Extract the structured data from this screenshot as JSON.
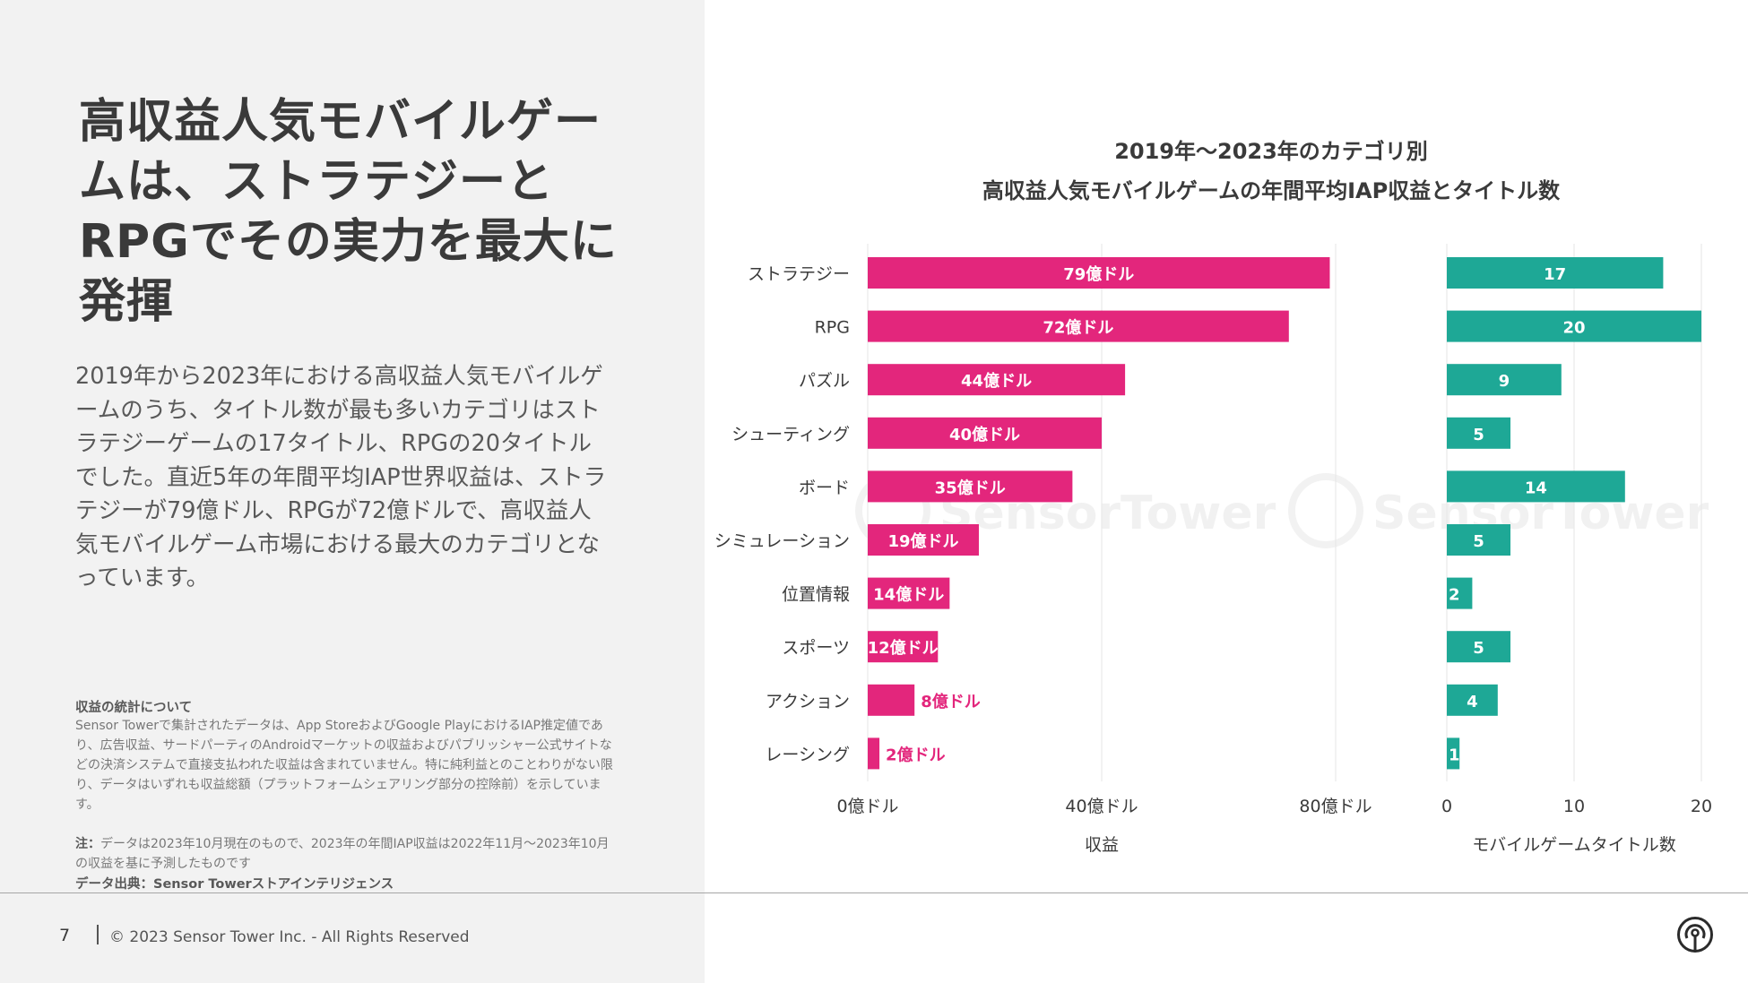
{
  "slide": {
    "title": "高収益人気モバイルゲームは、ストラテジーとRPGでその実力を最大に発揮",
    "body": "2019年から2023年における高収益人気モバイルゲームのうち、タイトル数が最も多いカテゴリはストラテジーゲームの17タイトル、RPGの20タイトルでした。直近5年の年間平均IAP世界収益は、ストラテジーが79億ドル、RPGが72億ドルで、高収益人気モバイルゲーム市場における最大のカテゴリとなっています。",
    "note_heading": "収益の統計について",
    "note_text": "Sensor Towerで集計されたデータは、App StoreおよびGoogle PlayにおけるIAP推定値であり、広告収益、サードパーティのAndroidマーケットの収益およびパブリッシャー公式サイトなどの決済システムで直接支払われた収益は含まれていません。特に純利益とのことわりがない限り、データはいずれも収益総額（プラットフォームシェアリング部分の控除前）を示しています。",
    "note_date_label": "注：",
    "note_date_text": "データは2023年10月現在のもので、2023年の年間IAP収益は2022年11月〜2023年10月の収益を基に予測したものです",
    "source": "データ出典：Sensor Towerストアインテリジェンス"
  },
  "footer": {
    "page_number": "7",
    "copyright": "© 2023 Sensor Tower Inc. - All Rights Reserved"
  },
  "watermark": "SensorTower",
  "colors": {
    "revenue": "#e3267c",
    "titles": "#1ea896",
    "left_bg": "#f2f2f2",
    "grid": "#e6e6e6"
  },
  "chart_data": {
    "type": "bar",
    "orientation": "horizontal",
    "title_line1": "2019年〜2023年のカテゴリ別",
    "title_line2": "高収益人気モバイルゲームの年間平均IAP収益とタイトル数",
    "categories": [
      "ストラテジー",
      "RPG",
      "パズル",
      "シューティング",
      "ボード",
      "シミュレーション",
      "位置情報",
      "スポーツ",
      "アクション",
      "レーシング"
    ],
    "series": [
      {
        "name": "収益",
        "unit": "億ドル",
        "values": [
          79,
          72,
          44,
          40,
          35,
          19,
          14,
          12,
          8,
          2
        ],
        "labels": [
          "79億ドル",
          "72億ドル",
          "44億ドル",
          "40億ドル",
          "35億ドル",
          "19億ドル",
          "14億ドル",
          "12億ドル",
          "8億ドル",
          "2億ドル"
        ],
        "xlim": [
          0,
          80
        ],
        "ticks": [
          0,
          40,
          80
        ],
        "tick_labels": [
          "0億ドル",
          "40億ドル",
          "80億ドル"
        ],
        "xlabel": "収益"
      },
      {
        "name": "モバイルゲームタイトル数",
        "values": [
          17,
          20,
          9,
          5,
          14,
          5,
          2,
          5,
          4,
          1
        ],
        "labels": [
          "17",
          "20",
          "9",
          "5",
          "14",
          "5",
          "2",
          "5",
          "4",
          "1"
        ],
        "xlim": [
          0,
          20
        ],
        "ticks": [
          0,
          10,
          20
        ],
        "tick_labels": [
          "0",
          "10",
          "20"
        ],
        "xlabel": "モバイルゲームタイトル数"
      }
    ]
  }
}
